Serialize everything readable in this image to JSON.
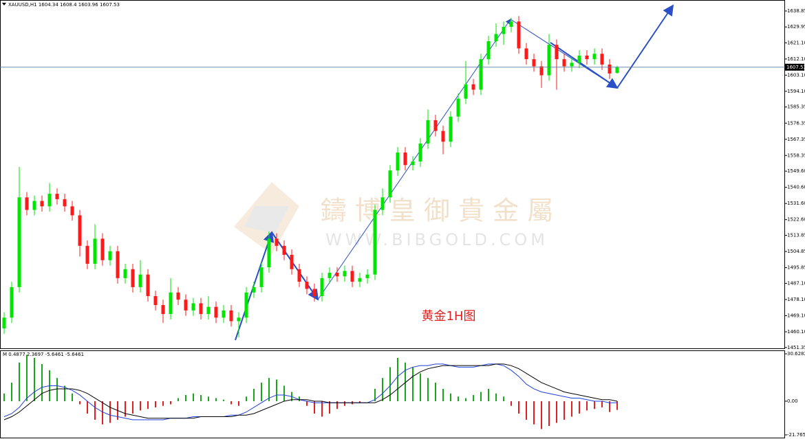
{
  "chart_data": [
    {
      "type": "candlestick",
      "title": "XAUUSD,H1",
      "open": [
        1462,
        1468,
        1485,
        1535,
        1528,
        1533,
        1530,
        1537,
        1534,
        1530,
        1525,
        1508,
        1498,
        1512,
        1500,
        1505,
        1490,
        1495,
        1485,
        1492,
        1480,
        1475,
        1470,
        1482,
        1478,
        1472,
        1476,
        1470,
        1474,
        1468,
        1472,
        1466,
        1468,
        1482,
        1485,
        1496,
        1512,
        1508,
        1503,
        1495,
        1488,
        1484,
        1480,
        1490,
        1493,
        1491,
        1494,
        1488,
        1490,
        1492,
        1528,
        1535,
        1550,
        1560,
        1553,
        1555,
        1565,
        1578,
        1572,
        1566,
        1580,
        1590,
        1598,
        1595,
        1612,
        1622,
        1626,
        1630,
        1633,
        1618,
        1612,
        1608,
        1603,
        1620,
        1612,
        1608,
        1610,
        1614,
        1612,
        1615,
        1609,
        1604.34
      ],
      "high": [
        1471,
        1488,
        1552,
        1538,
        1536,
        1536,
        1543,
        1540,
        1537,
        1533,
        1528,
        1511,
        1520,
        1515,
        1508,
        1508,
        1498,
        1498,
        1500,
        1495,
        1483,
        1478,
        1490,
        1485,
        1481,
        1479,
        1479,
        1480,
        1477,
        1475,
        1475,
        1471,
        1485,
        1488,
        1499,
        1516,
        1515,
        1511,
        1506,
        1498,
        1491,
        1487,
        1493,
        1496,
        1496,
        1497,
        1497,
        1493,
        1495,
        1531,
        1540,
        1553,
        1563,
        1563,
        1558,
        1568,
        1584,
        1581,
        1575,
        1583,
        1593,
        1611,
        1601,
        1615,
        1625,
        1632,
        1633,
        1635,
        1636,
        1621,
        1615,
        1611,
        1626,
        1623,
        1615,
        1613,
        1617,
        1617,
        1618,
        1618,
        1612,
        1608.4
      ],
      "low": [
        1459,
        1465,
        1482,
        1525,
        1525,
        1527,
        1527,
        1531,
        1527,
        1522,
        1502,
        1495,
        1495,
        1497,
        1497,
        1487,
        1487,
        1482,
        1482,
        1477,
        1472,
        1465,
        1467,
        1475,
        1469,
        1469,
        1467,
        1467,
        1465,
        1465,
        1463,
        1457,
        1465,
        1479,
        1482,
        1493,
        1505,
        1500,
        1492,
        1485,
        1481,
        1477,
        1477,
        1487,
        1488,
        1488,
        1485,
        1485,
        1487,
        1489,
        1525,
        1532,
        1547,
        1550,
        1550,
        1552,
        1562,
        1569,
        1559,
        1563,
        1577,
        1587,
        1592,
        1592,
        1609,
        1619,
        1620,
        1627,
        1615,
        1609,
        1605,
        1596,
        1600,
        1595,
        1605,
        1605,
        1607,
        1609,
        1609,
        1606,
        1601,
        1603.96
      ],
      "close": [
        1468,
        1485,
        1535,
        1528,
        1533,
        1530,
        1537,
        1534,
        1530,
        1525,
        1508,
        1498,
        1512,
        1500,
        1505,
        1490,
        1495,
        1485,
        1492,
        1480,
        1475,
        1470,
        1482,
        1478,
        1472,
        1476,
        1470,
        1474,
        1468,
        1472,
        1466,
        1468,
        1482,
        1485,
        1496,
        1512,
        1508,
        1503,
        1495,
        1488,
        1484,
        1480,
        1490,
        1493,
        1491,
        1494,
        1488,
        1490,
        1492,
        1528,
        1535,
        1550,
        1560,
        1553,
        1555,
        1565,
        1578,
        1572,
        1566,
        1580,
        1590,
        1598,
        1595,
        1612,
        1622,
        1626,
        1630,
        1633,
        1618,
        1612,
        1608,
        1603,
        1620,
        1612,
        1608,
        1610,
        1614,
        1612,
        1615,
        1609,
        1604,
        1607.53
      ],
      "up_color": "#00e600",
      "down_color": "#ff1a1a",
      "price_line_color": "#5a7a9a",
      "ylim": [
        1450.9,
        1644.2
      ],
      "yticks": [
        1638.85,
        1629.95,
        {
          "value": 1621.1,
          "label": "1621.10"
        },
        {
          "value": 1612.1,
          "label": "1612.10"
        },
        {
          "value": 1603.1,
          "label": "1603.10"
        },
        {
          "value": 1594.1,
          "label": "1594.10"
        },
        1585.35,
        1576.35,
        1567.35,
        1558.35,
        {
          "value": 1549.6,
          "label": "1549.60"
        },
        {
          "value": 1540.6,
          "label": "1540.60"
        },
        {
          "value": 1531.6,
          "label": "1531.60"
        },
        {
          "value": 1522.6,
          "label": "1522.60"
        },
        1513.85,
        1504.85,
        1495.85,
        {
          "value": 1487.1,
          "label": "1487.10"
        },
        {
          "value": 1478.1,
          "label": "1478.10"
        },
        {
          "value": 1469.1,
          "label": "1469.10"
        },
        {
          "value": 1460.1,
          "label": "1460.10"
        },
        1451.35
      ],
      "watermark": "鑄 博 皇 御 貴 金 屬",
      "watermark_url": "WWW.BIBGOLD.COM",
      "annotation": "黄金1H图"
    },
    {
      "type": "macd",
      "title": "M",
      "header_values": [
        0.4877,
        2.3697
      ],
      "values": [
        5,
        12,
        25,
        30,
        28,
        24,
        20,
        15,
        10,
        5,
        -2,
        -8,
        -12,
        -15,
        -14,
        -12,
        -10,
        -8,
        -6,
        -5,
        -4,
        -3,
        -2,
        2,
        4,
        5,
        4,
        3,
        2,
        1,
        -2,
        -3,
        3,
        8,
        12,
        15,
        14,
        10,
        6,
        3,
        -3,
        -8,
        -10,
        -8,
        -5,
        -3,
        -2,
        -1,
        0,
        8,
        15,
        22,
        28,
        25,
        22,
        18,
        15,
        12,
        8,
        5,
        3,
        2,
        4,
        6,
        8,
        5,
        3,
        -3,
        -8,
        -12,
        -15,
        -18,
        -16,
        -14,
        -12,
        -10,
        -8,
        -6,
        -5,
        -4,
        -7,
        -5.6461
      ],
      "pos_color": "#1aa61a",
      "neg_color": "#e02020",
      "series": [
        {
          "color": "#1f3fe0",
          "values": [
            -10,
            -8,
            -4,
            2,
            6,
            9,
            10,
            10,
            9,
            7,
            4,
            0,
            -4,
            -7,
            -9,
            -10,
            -11,
            -12,
            -12,
            -12,
            -12,
            -12,
            -11,
            -11,
            -11,
            -10,
            -10,
            -10,
            -10,
            -10,
            -9,
            -9,
            -7,
            -4,
            -1,
            2,
            4,
            4,
            3,
            1,
            0,
            -1,
            -1,
            -1,
            -1,
            -1,
            -1,
            -1,
            -1,
            1,
            5,
            10,
            16,
            20,
            22,
            23,
            23,
            24,
            24,
            23,
            22,
            22,
            22,
            23,
            24,
            24,
            23,
            20,
            16,
            11,
            8,
            6,
            5,
            4,
            3,
            2,
            2,
            1,
            0,
            0,
            -1,
            -1
          ]
        },
        {
          "color": "#000000",
          "values": [
            -12,
            -10,
            -7,
            -3,
            1,
            5,
            7,
            8,
            8,
            8,
            7,
            5,
            2,
            -1,
            -4,
            -6,
            -8,
            -9,
            -10,
            -11,
            -11,
            -11,
            -11,
            -11,
            -11,
            -11,
            -10,
            -10,
            -10,
            -10,
            -10,
            -9,
            -9,
            -8,
            -6,
            -4,
            -2,
            0,
            1,
            1,
            1,
            0,
            0,
            -1,
            -1,
            -1,
            -1,
            -1,
            -1,
            -1,
            1,
            4,
            8,
            12,
            16,
            19,
            21,
            22,
            23,
            23,
            23,
            23,
            23,
            23,
            23,
            24,
            24,
            23,
            21,
            18,
            15,
            12,
            10,
            8,
            6,
            5,
            4,
            3,
            2,
            1,
            1,
            0
          ]
        }
      ],
      "ylim": [
        -23.1,
        32.4
      ],
      "yticks": [
        30.6282,
        {
          "value": 0,
          "label": "0.00"
        },
        -21.7655
      ]
    }
  ]
}
